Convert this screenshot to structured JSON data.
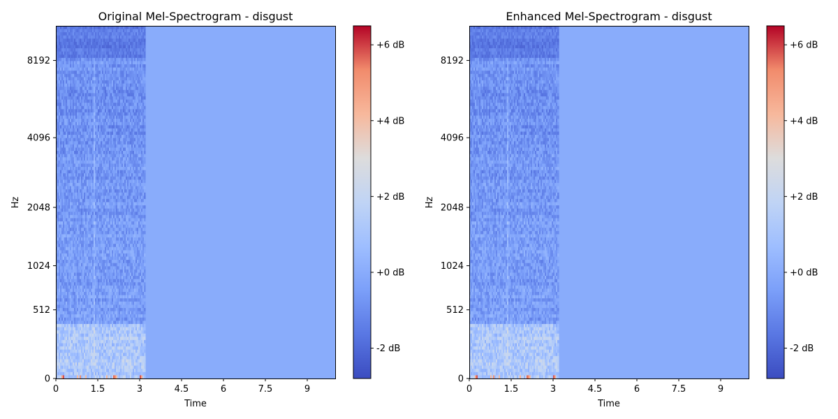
{
  "figure": {
    "background": "#ffffff"
  },
  "chart_data": [
    {
      "type": "heatmap",
      "title": "Original Mel-Spectrogram - disgust",
      "xlabel": "Time",
      "ylabel": "Hz",
      "xlim": [
        0,
        10
      ],
      "x_ticks": [
        0,
        1.5,
        3,
        4.5,
        6,
        7.5,
        9
      ],
      "x_tick_labels": [
        "0",
        "1.5",
        "3",
        "4.5",
        "6",
        "7.5",
        "9"
      ],
      "y_scale": "mel",
      "ylim_hz": [
        0,
        11025
      ],
      "y_ticks": [
        0,
        512,
        1024,
        2048,
        4096,
        8192
      ],
      "y_tick_labels": [
        "0",
        "512",
        "1024",
        "2048",
        "4096",
        "8192"
      ],
      "signal_end_time": 3.2,
      "colorbar": {
        "colormap": "coolwarm",
        "vmin_db": -2.8,
        "vmax_db": 6.5,
        "ticks_db": [
          -2,
          0,
          2,
          4,
          6
        ],
        "tick_labels": [
          "-2 dB",
          "+0 dB",
          "+2 dB",
          "+4 dB",
          "+6 dB"
        ]
      },
      "fill_value_db": 0,
      "grid": false
    },
    {
      "type": "heatmap",
      "title": "Enhanced Mel-Spectrogram - disgust",
      "xlabel": "Time",
      "ylabel": "Hz",
      "xlim": [
        0,
        10
      ],
      "x_ticks": [
        0,
        1.5,
        3,
        4.5,
        6,
        7.5,
        9
      ],
      "x_tick_labels": [
        "0",
        "1.5",
        "3",
        "4.5",
        "6",
        "7.5",
        "9"
      ],
      "y_scale": "mel",
      "ylim_hz": [
        0,
        11025
      ],
      "y_ticks": [
        0,
        512,
        1024,
        2048,
        4096,
        8192
      ],
      "y_tick_labels": [
        "0",
        "512",
        "1024",
        "2048",
        "4096",
        "8192"
      ],
      "signal_end_time": 3.2,
      "colorbar": {
        "colormap": "coolwarm",
        "vmin_db": -2.8,
        "vmax_db": 6.5,
        "ticks_db": [
          -2,
          0,
          2,
          4,
          6
        ],
        "tick_labels": [
          "-2 dB",
          "+0 dB",
          "+2 dB",
          "+4 dB",
          "+6 dB"
        ]
      },
      "fill_value_db": 0,
      "grid": false
    }
  ]
}
